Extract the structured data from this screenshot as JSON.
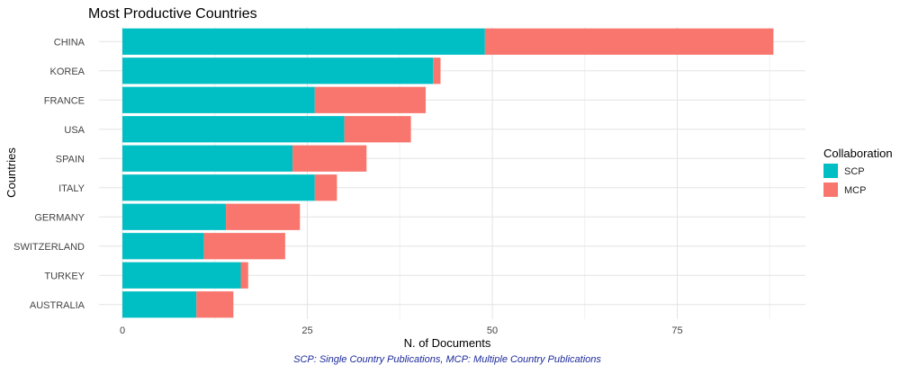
{
  "chart_data": {
    "type": "bar",
    "orientation": "horizontal",
    "stacked": true,
    "title": "Most Productive Countries",
    "xlabel": "N. of Documents",
    "ylabel": "Countries",
    "caption": "SCP: Single Country Publications, MCP: Multiple Country Publications",
    "categories": [
      "CHINA",
      "KOREA",
      "FRANCE",
      "USA",
      "SPAIN",
      "ITALY",
      "GERMANY",
      "SWITZERLAND",
      "TURKEY",
      "AUSTRALIA"
    ],
    "series": [
      {
        "name": "SCP",
        "color": "#00bfc4",
        "values": [
          49,
          42,
          26,
          30,
          23,
          26,
          14,
          11,
          16,
          10
        ]
      },
      {
        "name": "MCP",
        "color": "#f8766d",
        "values": [
          39,
          1,
          15,
          9,
          10,
          3,
          10,
          11,
          1,
          5
        ]
      }
    ],
    "xlim": [
      0,
      92
    ],
    "xticks": [
      0,
      25,
      50,
      75
    ],
    "xtick_labels": [
      "0",
      "25",
      "50",
      "75"
    ],
    "grid": true,
    "legend": {
      "title": "Collaboration",
      "position": "right",
      "entries": [
        "SCP",
        "MCP"
      ]
    }
  }
}
